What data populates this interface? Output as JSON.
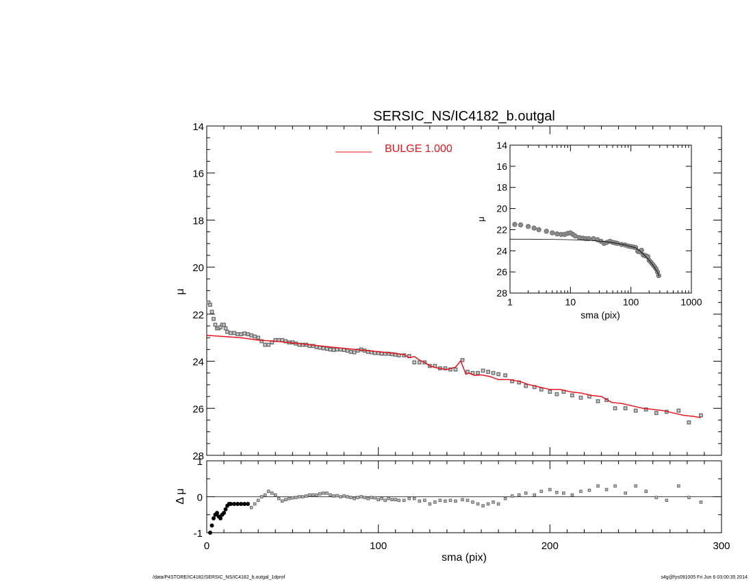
{
  "chart_data": [
    {
      "type": "scatter",
      "title": "SERSIC_NS/IC4182_b.outgal",
      "xlabel": "",
      "ylabel": "μ",
      "xlim": [
        0,
        300
      ],
      "ylim": [
        28,
        14
      ],
      "y_inverted": true,
      "yticks": [
        "14",
        "16",
        "18",
        "20",
        "22",
        "24",
        "26",
        "28"
      ],
      "legend": {
        "placement": "top-center",
        "label": "BULGE  1.000",
        "color": "#e8141b"
      },
      "series": [
        {
          "kind": "points",
          "color": "#6e6e6e",
          "x": [
            1,
            2,
            3,
            4,
            5,
            6,
            7,
            8,
            9,
            10,
            11,
            12,
            14,
            16,
            18,
            20,
            22,
            24,
            26,
            28,
            30,
            32,
            34,
            36,
            38,
            40,
            42,
            44,
            46,
            48,
            50,
            52,
            54,
            56,
            58,
            60,
            62,
            64,
            66,
            68,
            70,
            72,
            74,
            76,
            78,
            80,
            82,
            84,
            86,
            88,
            90,
            92,
            94,
            96,
            98,
            100,
            102,
            104,
            106,
            108,
            110,
            112,
            115,
            118,
            121,
            124,
            127,
            130,
            133,
            136,
            139,
            142,
            145,
            149,
            152,
            155,
            158,
            161,
            164,
            167,
            170,
            174,
            178,
            182,
            186,
            191,
            195,
            200,
            204,
            208,
            213,
            218,
            223,
            228,
            233,
            238,
            244,
            250,
            256,
            262,
            268,
            275,
            281,
            288
          ],
          "y": [
            21.5,
            21.6,
            21.9,
            22.2,
            22.45,
            22.6,
            22.6,
            22.55,
            22.45,
            22.45,
            22.6,
            22.75,
            22.8,
            22.8,
            22.85,
            22.85,
            22.82,
            22.85,
            22.9,
            22.95,
            23.0,
            23.15,
            23.3,
            23.3,
            23.2,
            23.1,
            23.1,
            23.1,
            23.15,
            23.2,
            23.2,
            23.25,
            23.3,
            23.3,
            23.3,
            23.35,
            23.35,
            23.4,
            23.42,
            23.45,
            23.47,
            23.5,
            23.52,
            23.5,
            23.5,
            23.52,
            23.55,
            23.6,
            23.62,
            23.55,
            23.5,
            23.55,
            23.6,
            23.62,
            23.65,
            23.65,
            23.68,
            23.68,
            23.68,
            23.7,
            23.72,
            23.75,
            23.75,
            23.78,
            24.05,
            24.05,
            24.05,
            24.2,
            24.2,
            24.3,
            24.3,
            24.35,
            24.35,
            23.95,
            24.45,
            24.5,
            24.5,
            24.4,
            24.45,
            24.5,
            24.55,
            24.6,
            24.85,
            24.9,
            25.05,
            25.1,
            25.2,
            25.3,
            25.4,
            25.3,
            25.45,
            25.55,
            25.5,
            25.7,
            25.65,
            26.0,
            26.0,
            26.1,
            26.05,
            26.2,
            26.15,
            26.1,
            26.6,
            26.3
          ]
        },
        {
          "kind": "line",
          "name": "BULGE  1.000",
          "color": "#e8141b",
          "x": [
            0,
            10,
            20,
            30,
            40,
            50,
            60,
            70,
            80,
            90,
            100,
            105,
            110,
            115,
            118,
            121,
            124,
            127,
            130,
            135,
            140,
            145,
            148,
            151,
            153,
            156,
            160,
            165,
            170,
            176,
            182,
            188,
            194,
            200,
            206,
            212,
            218,
            224,
            230,
            236,
            242,
            248,
            254,
            260,
            266,
            272,
            278,
            284,
            288
          ],
          "y": [
            22.9,
            22.95,
            23.0,
            23.1,
            23.15,
            23.22,
            23.3,
            23.38,
            23.45,
            23.52,
            23.6,
            23.63,
            23.67,
            23.72,
            23.85,
            23.8,
            23.95,
            24.05,
            24.2,
            24.3,
            24.35,
            24.25,
            23.98,
            24.55,
            24.5,
            24.6,
            24.58,
            24.65,
            24.78,
            24.78,
            24.85,
            25.0,
            25.1,
            25.2,
            25.2,
            25.3,
            25.35,
            25.45,
            25.5,
            25.75,
            25.8,
            25.9,
            26.0,
            26.05,
            26.1,
            26.2,
            26.3,
            26.35,
            26.4
          ]
        }
      ]
    },
    {
      "type": "scatter",
      "title": "",
      "xlabel": "sma (pix)",
      "ylabel": "Δ μ",
      "xlim": [
        0,
        300
      ],
      "ylim": [
        -1,
        1
      ],
      "xticks": [
        "0",
        "100",
        "200",
        "300"
      ],
      "yticks": [
        "1",
        "0",
        "-1"
      ],
      "reference_line": 0,
      "series": [
        {
          "kind": "points",
          "color": "#000000",
          "x": [
            2,
            3,
            4,
            5,
            6,
            7,
            8,
            9,
            10,
            11,
            12,
            13,
            14,
            16,
            18,
            20,
            22,
            24,
            26,
            28,
            30,
            32,
            34,
            36,
            38,
            40,
            42,
            44,
            46,
            48,
            50,
            52,
            54,
            56,
            58,
            60,
            62,
            64,
            66,
            68,
            70,
            72,
            74,
            76,
            78,
            80,
            82,
            84,
            86,
            88,
            90,
            92,
            94,
            96,
            98,
            100,
            102,
            104,
            106,
            108,
            110,
            112,
            115,
            118,
            121,
            124,
            127,
            130,
            133,
            136,
            139,
            142,
            145,
            149,
            152,
            155,
            158,
            161,
            164,
            167,
            170,
            174,
            178,
            182,
            186,
            191,
            195,
            200,
            204,
            208,
            213,
            218,
            223,
            228,
            233,
            238,
            244,
            250,
            256,
            262,
            268,
            275,
            281,
            288
          ],
          "y": [
            -1.0,
            -0.8,
            -0.6,
            -0.5,
            -0.45,
            -0.55,
            -0.6,
            -0.5,
            -0.45,
            -0.35,
            -0.25,
            -0.2,
            -0.2,
            -0.2,
            -0.2,
            -0.2,
            -0.2,
            -0.2,
            -0.3,
            -0.2,
            -0.1,
            0.0,
            0.05,
            0.15,
            0.1,
            0.05,
            -0.05,
            -0.12,
            -0.08,
            -0.05,
            -0.03,
            -0.02,
            0.0,
            0.0,
            0.02,
            0.05,
            0.05,
            0.05,
            0.08,
            0.1,
            0.1,
            0.05,
            0.02,
            0.03,
            0.0,
            0.02,
            0.0,
            -0.02,
            -0.05,
            -0.02,
            0.0,
            -0.02,
            -0.05,
            -0.02,
            -0.03,
            -0.08,
            -0.05,
            -0.1,
            -0.05,
            -0.08,
            -0.08,
            -0.1,
            -0.1,
            -0.05,
            -0.05,
            -0.12,
            -0.1,
            -0.2,
            -0.15,
            -0.1,
            -0.12,
            -0.1,
            -0.12,
            -0.08,
            -0.1,
            -0.15,
            -0.2,
            -0.25,
            -0.2,
            -0.15,
            -0.2,
            -0.05,
            0.02,
            0.05,
            0.1,
            0.05,
            0.15,
            0.2,
            0.12,
            0.1,
            0.05,
            0.15,
            0.18,
            0.3,
            0.2,
            0.3,
            0.1,
            0.3,
            0.15,
            -0.02,
            -0.1,
            0.3,
            -0.02,
            -0.15
          ]
        }
      ]
    },
    {
      "type": "scatter",
      "title": "",
      "xlabel": "sma (pix)",
      "ylabel": "μ",
      "x_scale": "log",
      "xlim": [
        1,
        1000
      ],
      "ylim": [
        28,
        14
      ],
      "y_inverted": true,
      "xticks": [
        "1",
        "10",
        "100",
        "1000"
      ],
      "yticks": [
        "14",
        "16",
        "18",
        "20",
        "22",
        "24",
        "26",
        "28"
      ],
      "series": [
        {
          "kind": "points",
          "color": "#6e6e6e",
          "x": [
            1.2,
            1.5,
            2,
            2.5,
            3,
            4,
            5,
            6,
            7,
            8,
            9,
            10,
            11,
            12,
            14,
            16,
            18,
            20,
            24,
            28,
            32,
            36,
            40,
            45,
            50,
            55,
            60,
            70,
            80,
            90,
            100,
            110,
            120,
            130,
            140,
            150,
            160,
            170,
            180,
            190,
            200,
            215,
            230,
            245,
            260,
            275,
            288
          ],
          "y": [
            21.5,
            21.55,
            21.7,
            21.85,
            22.0,
            22.15,
            22.3,
            22.4,
            22.45,
            22.45,
            22.35,
            22.3,
            22.45,
            22.6,
            22.75,
            22.8,
            22.85,
            22.85,
            22.85,
            22.95,
            23.1,
            23.3,
            23.2,
            23.1,
            23.2,
            23.25,
            23.3,
            23.4,
            23.45,
            23.55,
            23.6,
            23.65,
            23.7,
            24.05,
            24.1,
            23.95,
            24.4,
            24.45,
            24.5,
            24.55,
            24.9,
            25.1,
            25.3,
            25.5,
            25.7,
            26.0,
            26.35
          ]
        },
        {
          "kind": "line",
          "color": "#000000",
          "x": [
            1,
            2,
            5,
            10,
            20,
            40,
            60,
            80,
            100,
            120,
            140,
            160,
            180,
            200,
            220,
            240,
            260,
            280,
            290
          ],
          "y": [
            22.9,
            22.9,
            22.92,
            22.95,
            23.0,
            23.15,
            23.3,
            23.45,
            23.6,
            23.72,
            24.0,
            24.3,
            24.6,
            24.9,
            25.2,
            25.5,
            25.8,
            26.1,
            26.4
          ]
        }
      ]
    }
  ],
  "footer": {
    "path": "/data/P4STORE/IC4182/SERSIC_NS/IC4182_b.outgal_1dprof",
    "stamp": "s4g@fys091005  Fri Jun  6 03:00:35 2014"
  }
}
